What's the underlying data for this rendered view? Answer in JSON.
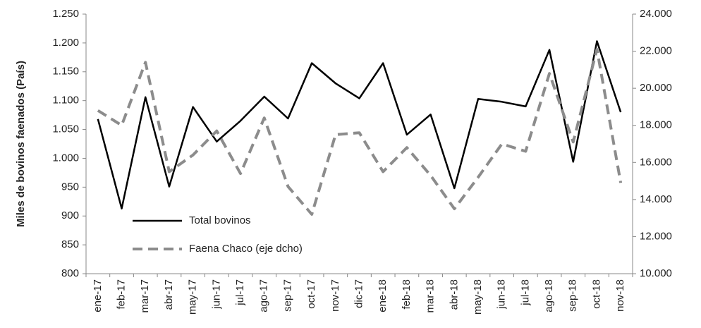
{
  "chart_data": {
    "type": "line",
    "y_label": "Miles de bovinos faenados (País)",
    "categories": [
      "ene-17",
      "feb-17",
      "mar-17",
      "abr-17",
      "may-17",
      "jun-17",
      "jul-17",
      "ago-17",
      "sep-17",
      "oct-17",
      "nov-17",
      "dic-17",
      "ene-18",
      "feb-18",
      "mar-18",
      "abr-18",
      "may-18",
      "jun-18",
      "jul-18",
      "ago-18",
      "sep-18",
      "oct-18",
      "nov-18"
    ],
    "series": [
      {
        "name": "Total bovinos",
        "color": "#000000",
        "dash": false,
        "values": [
          1068,
          913,
          1106,
          951,
          1089,
          1029,
          1065,
          1107,
          1069,
          1165,
          1130,
          1104,
          1165,
          1041,
          1076,
          948,
          1103,
          1098,
          1090,
          1188,
          994,
          1203,
          1080
        ]
      },
      {
        "name": "Faena Chaco (eje dcho)",
        "color": "#8c8c8c",
        "dash": true,
        "axis": "y2",
        "values": [
          18800,
          18000,
          21400,
          15500,
          16400,
          17700,
          15400,
          18400,
          14700,
          13200,
          17500,
          17600,
          15500,
          16800,
          15300,
          13500,
          15200,
          17000,
          16600,
          20800,
          17100,
          22100,
          14900
        ]
      }
    ],
    "ylim": [
      800,
      1250
    ],
    "yticks": [
      800,
      850,
      900,
      950,
      {
        "value": 1000,
        "label": "1.000"
      },
      {
        "value": 1050,
        "label": "1.050"
      },
      {
        "value": 1100,
        "label": "1.100"
      },
      {
        "value": 1150,
        "label": "1.150"
      },
      {
        "value": 1200,
        "label": "1.200"
      },
      {
        "value": 1250,
        "label": "1.250"
      }
    ],
    "y2lim": [
      10000,
      24000
    ],
    "y2ticks": [
      {
        "value": 10000,
        "label": "10.000"
      },
      {
        "value": 12000,
        "label": "12.000"
      },
      {
        "value": 14000,
        "label": "14.000"
      },
      {
        "value": 16000,
        "label": "16.000"
      },
      {
        "value": 18000,
        "label": "18.000"
      },
      {
        "value": 20000,
        "label": "20.000"
      },
      {
        "value": 22000,
        "label": "22.000"
      },
      {
        "value": 24000,
        "label": "24.000"
      }
    ],
    "grid": false,
    "legend": "lower left"
  }
}
